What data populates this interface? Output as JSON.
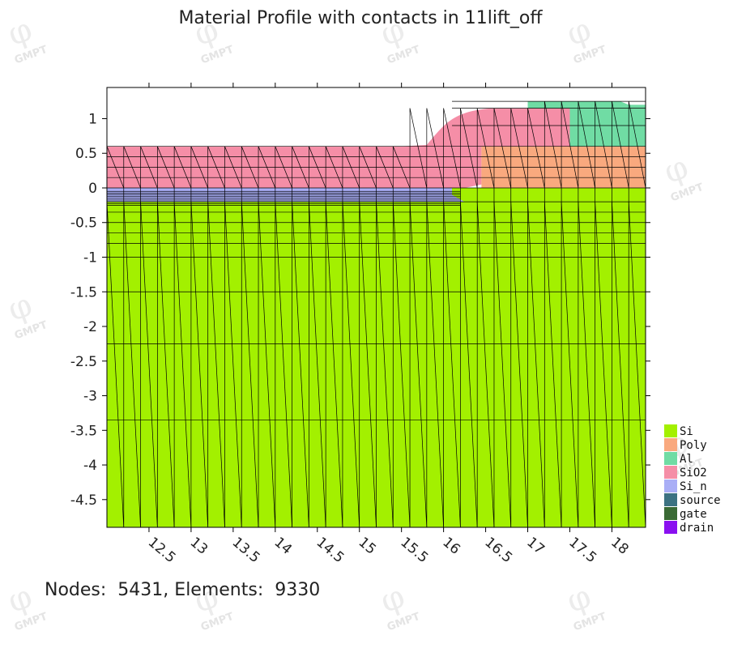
{
  "title": "Material Profile with contacts in 11lift_off",
  "footer": {
    "nodes_label": "Nodes:",
    "nodes": "5431",
    "elements_label": "Elements:",
    "elements": "9330"
  },
  "watermark": "GMPT",
  "chart_data": {
    "type": "heatmap",
    "title": "Material Profile with contacts in 11lift_off",
    "xlim": [
      12.0,
      18.4
    ],
    "ylim": [
      -4.9,
      1.45
    ],
    "x_ticks": [
      "12.5",
      "13",
      "13.5",
      "14",
      "14.5",
      "15",
      "15.5",
      "16",
      "16.5",
      "17",
      "17.5",
      "18"
    ],
    "y_ticks": [
      "1",
      "0.5",
      "0",
      "-0.5",
      "-1",
      "-1.5",
      "-2",
      "-2.5",
      "-3",
      "-3.5",
      "-4",
      "-4.5"
    ],
    "regions": [
      {
        "material": "Si",
        "color": "#a3f000"
      },
      {
        "material": "Poly",
        "color": "#f9a97e"
      },
      {
        "material": "Al",
        "color": "#70dca4"
      },
      {
        "material": "SiO2",
        "color": "#f58ea7"
      },
      {
        "material": "Si_n",
        "color": "#a9aef6"
      }
    ],
    "legend": [
      {
        "label": "Si",
        "color": "#a3f000"
      },
      {
        "label": "Poly",
        "color": "#f9a97e"
      },
      {
        "label": "Al",
        "color": "#70dca4"
      },
      {
        "label": "SiO2",
        "color": "#f58ea7"
      },
      {
        "label": "Si_n",
        "color": "#a9aef6"
      },
      {
        "label": "source",
        "color": "#3c7282"
      },
      {
        "label": "gate",
        "color": "#3a6a35"
      },
      {
        "label": "drain",
        "color": "#8a10f0"
      }
    ],
    "legend_position": "right-bottom",
    "nodes": 5431,
    "elements": 9330
  }
}
